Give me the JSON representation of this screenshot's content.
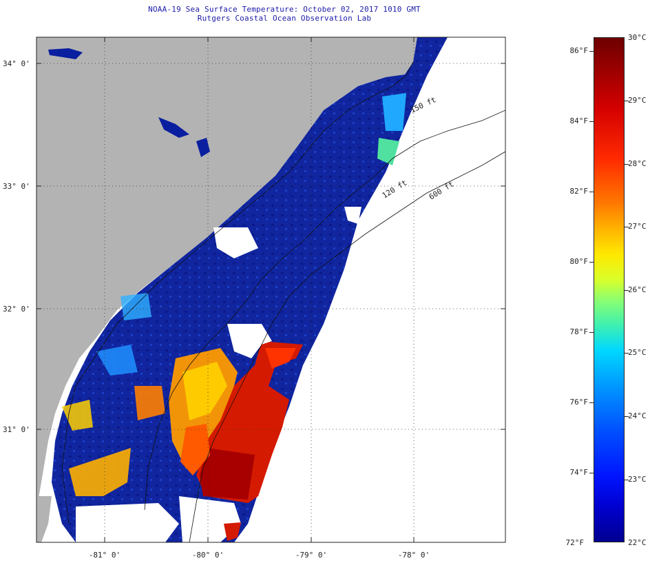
{
  "title_line1": "NOAA-19 Sea Surface Temperature:  October 02, 2017 1010 GMT",
  "title_line2": "Rutgers Coastal Ocean Observation Lab",
  "lat_labels": [
    "34° 0'",
    "33° 0'",
    "32° 0'",
    "31° 0'"
  ],
  "lon_labels": [
    "-81° 0'",
    "-80° 0'",
    "-79° 0'",
    "-78° 0'"
  ],
  "isobath_labels": [
    "150 ft",
    "120 ft",
    "600 ft"
  ],
  "colorbar": {
    "fahrenheit": [
      "86°F",
      "84°F",
      "82°F",
      "80°F",
      "78°F",
      "76°F",
      "74°F",
      "72°F"
    ],
    "celsius": [
      "30°C",
      "29°C",
      "28°C",
      "27°C",
      "26°C",
      "25°C",
      "24°C",
      "23°C",
      "22°C"
    ],
    "min_c": 22,
    "max_c": 30
  },
  "colors": {
    "land": "#b3b3b3",
    "cold": "#0a1ea0",
    "warm": "#d41a00",
    "no_data": "#ffffff"
  }
}
